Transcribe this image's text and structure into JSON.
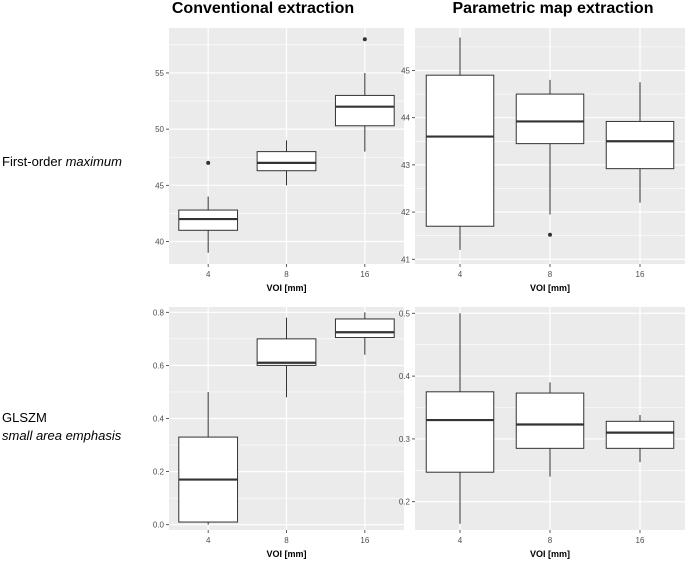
{
  "column_titles": [
    "Conventional extraction",
    "Parametric map extraction"
  ],
  "row_labels": [
    {
      "plain": "First-order ",
      "italic": "maximum"
    },
    {
      "plain": "GLSZM",
      "italic": "small area emphasis"
    }
  ],
  "colors": {
    "panel_bg": "#ebebeb",
    "grid": "#ffffff",
    "box_fill": "#ffffff",
    "box_stroke": "#333333",
    "text": "#000000",
    "tick_text": "#4d4d4d"
  },
  "chart_data": [
    {
      "type": "box",
      "title": "Conventional extraction",
      "row": "First-order maximum",
      "xlabel": "VOI [mm]",
      "categories": [
        "4",
        "8",
        "16"
      ],
      "ylim": [
        38,
        59
      ],
      "yticks": [
        40,
        45,
        50,
        55
      ],
      "boxes": [
        {
          "category": "4",
          "lower_whisker": 39,
          "q1": 41,
          "median": 42,
          "q3": 42.8,
          "upper_whisker": 44,
          "outliers": [
            47
          ]
        },
        {
          "category": "8",
          "lower_whisker": 45,
          "q1": 46.3,
          "median": 47,
          "q3": 48,
          "upper_whisker": 49,
          "outliers": []
        },
        {
          "category": "16",
          "lower_whisker": 48,
          "q1": 50.3,
          "median": 52,
          "q3": 53,
          "upper_whisker": 55,
          "outliers": [
            58
          ]
        }
      ]
    },
    {
      "type": "box",
      "title": "Parametric map extraction",
      "row": "First-order maximum",
      "xlabel": "VOI [mm]",
      "categories": [
        "4",
        "8",
        "16"
      ],
      "ylim": [
        40.9,
        45.9
      ],
      "yticks": [
        41,
        42,
        43,
        44,
        45
      ],
      "boxes": [
        {
          "category": "4",
          "lower_whisker": 41.2,
          "q1": 41.7,
          "median": 43.6,
          "q3": 44.9,
          "upper_whisker": 45.7,
          "outliers": []
        },
        {
          "category": "8",
          "lower_whisker": 41.95,
          "q1": 43.45,
          "median": 43.92,
          "q3": 44.5,
          "upper_whisker": 44.8,
          "outliers": [
            41.52
          ]
        },
        {
          "category": "16",
          "lower_whisker": 42.2,
          "q1": 42.92,
          "median": 43.5,
          "q3": 43.92,
          "upper_whisker": 44.75,
          "outliers": []
        }
      ]
    },
    {
      "type": "box",
      "title": "Conventional extraction",
      "row": "GLSZM small area emphasis",
      "xlabel": "VOI [mm]",
      "categories": [
        "4",
        "8",
        "16"
      ],
      "ylim": [
        -0.02,
        0.82
      ],
      "yticks": [
        0.0,
        0.2,
        0.4,
        0.6,
        0.8
      ],
      "ytick_labels": [
        "0.0",
        "0.2",
        "0.4",
        "0.6",
        "0.8"
      ],
      "boxes": [
        {
          "category": "4",
          "lower_whisker": 0.0,
          "q1": 0.01,
          "median": 0.17,
          "q3": 0.33,
          "upper_whisker": 0.5,
          "outliers": []
        },
        {
          "category": "8",
          "lower_whisker": 0.48,
          "q1": 0.6,
          "median": 0.61,
          "q3": 0.7,
          "upper_whisker": 0.78,
          "outliers": []
        },
        {
          "category": "16",
          "lower_whisker": 0.64,
          "q1": 0.705,
          "median": 0.725,
          "q3": 0.775,
          "upper_whisker": 0.8,
          "outliers": []
        }
      ]
    },
    {
      "type": "box",
      "title": "Parametric map extraction",
      "row": "GLSZM small area emphasis",
      "xlabel": "VOI [mm]",
      "categories": [
        "4",
        "8",
        "16"
      ],
      "ylim": [
        0.155,
        0.51
      ],
      "yticks": [
        0.2,
        0.3,
        0.4,
        0.5
      ],
      "ytick_labels": [
        "0.2",
        "0.3",
        "0.4",
        "0.5"
      ],
      "boxes": [
        {
          "category": "4",
          "lower_whisker": 0.165,
          "q1": 0.247,
          "median": 0.33,
          "q3": 0.375,
          "upper_whisker": 0.5,
          "outliers": []
        },
        {
          "category": "8",
          "lower_whisker": 0.24,
          "q1": 0.285,
          "median": 0.323,
          "q3": 0.373,
          "upper_whisker": 0.39,
          "outliers": []
        },
        {
          "category": "16",
          "lower_whisker": 0.263,
          "q1": 0.285,
          "median": 0.31,
          "q3": 0.328,
          "upper_whisker": 0.338,
          "outliers": []
        }
      ]
    }
  ]
}
